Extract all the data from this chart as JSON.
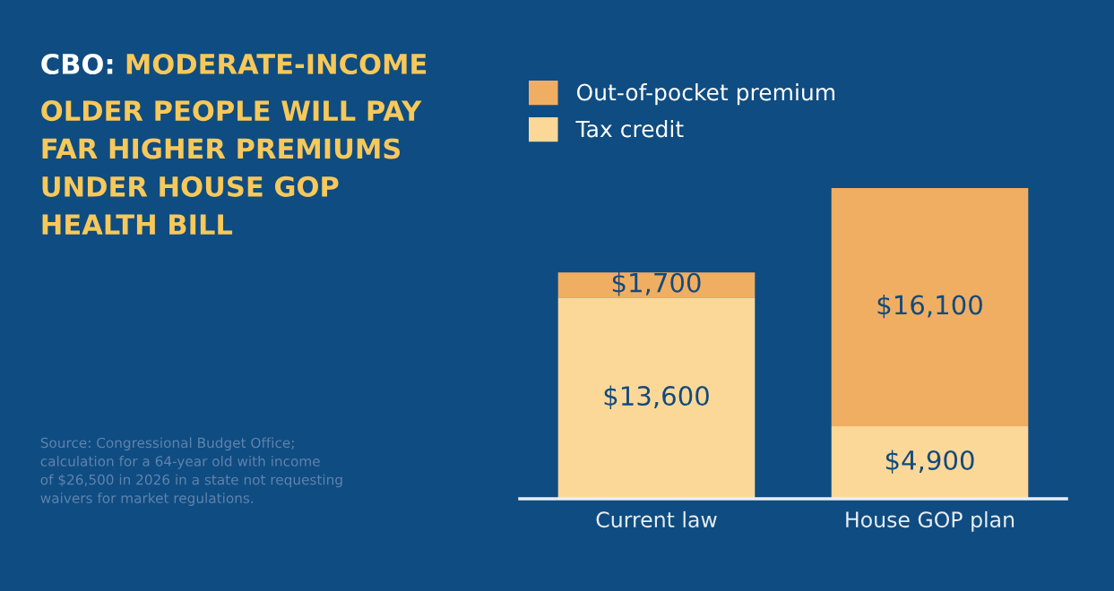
{
  "chart_data": {
    "type": "bar",
    "stacked": true,
    "title": "CBO: MODERATE-INCOME\nOLDER PEOPLE WILL PAY\nFAR HIGHER PREMIUMS\nUNDER HOUSE GOP\nHEALTH BILL",
    "categories": [
      "Current law",
      "House GOP plan"
    ],
    "series": [
      {
        "name": "Tax credit",
        "color": "#fcd898",
        "values": [
          13600,
          4900
        ],
        "value_labels": [
          "$13,600",
          "$4,900"
        ]
      },
      {
        "name": "Out-of-pocket premium",
        "color": "#f0ae62",
        "values": [
          1700,
          16100
        ],
        "value_labels": [
          "$1,700",
          "$16,100"
        ]
      }
    ],
    "legend": "top left",
    "annotations": [
      "Source: Congressional Budget Office;\ncalculation for a 64-year old with income\nof $26,500 in 2026 in a state not requesting\nwaivers for market regulations."
    ]
  }
}
